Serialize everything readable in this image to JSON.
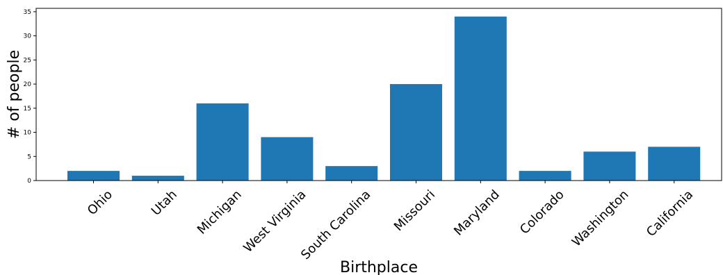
{
  "chart_data": {
    "type": "bar",
    "title": "",
    "xlabel": "Birthplace",
    "ylabel": "# of people",
    "categories": [
      "Ohio",
      "Utah",
      "Michigan",
      "West Virginia",
      "South Carolina",
      "Missouri",
      "Maryland",
      "Colorado",
      "Washington",
      "California"
    ],
    "values": [
      2,
      1,
      16,
      9,
      3,
      20,
      34,
      2,
      6,
      7
    ],
    "ylim": [
      0,
      35.7
    ],
    "yticks": [
      0,
      5,
      10,
      15,
      20,
      25,
      30,
      35
    ],
    "bar_color": "#1f77b4",
    "grid": false,
    "legend": "none"
  }
}
